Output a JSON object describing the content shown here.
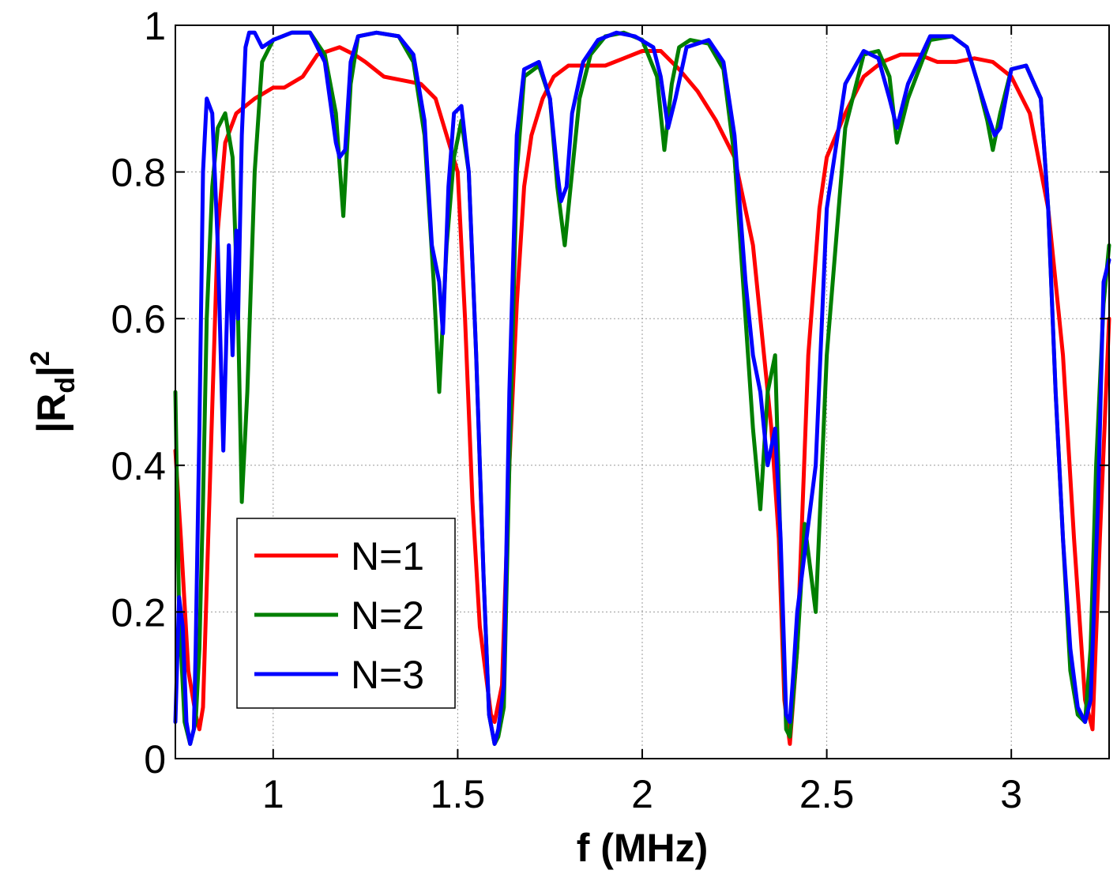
{
  "chart_data": {
    "type": "line",
    "title": "",
    "xlabel": "f (MHz)",
    "ylabel_main": "|R",
    "ylabel_sub": "d",
    "ylabel_tail": "|",
    "ylabel_sup": "2",
    "xlim": [
      0.735,
      3.265
    ],
    "ylim": [
      0,
      1
    ],
    "xticks": [
      1,
      1.5,
      2,
      2.5,
      3
    ],
    "xtick_labels": [
      "1",
      "1.5",
      "2",
      "2.5",
      "3"
    ],
    "yticks": [
      0,
      0.2,
      0.4,
      0.6,
      0.8,
      1
    ],
    "ytick_labels": [
      "0",
      "0.2",
      "0.4",
      "0.6",
      "0.8",
      "1"
    ],
    "grid": true,
    "legend_position": "lower-left",
    "series": [
      {
        "name": "N=1",
        "color": "#ff0000",
        "x": [
          0.735,
          0.75,
          0.77,
          0.79,
          0.8,
          0.81,
          0.83,
          0.85,
          0.87,
          0.9,
          0.95,
          1.0,
          1.03,
          1.08,
          1.12,
          1.18,
          1.22,
          1.25,
          1.3,
          1.35,
          1.4,
          1.44,
          1.47,
          1.5,
          1.52,
          1.54,
          1.56,
          1.58,
          1.59,
          1.6,
          1.62,
          1.64,
          1.66,
          1.68,
          1.7,
          1.73,
          1.76,
          1.8,
          1.85,
          1.9,
          1.95,
          2.0,
          2.05,
          2.1,
          2.15,
          2.2,
          2.25,
          2.3,
          2.33,
          2.35,
          2.37,
          2.385,
          2.4,
          2.42,
          2.45,
          2.48,
          2.5,
          2.55,
          2.6,
          2.65,
          2.7,
          2.75,
          2.8,
          2.85,
          2.9,
          2.95,
          3.0,
          3.05,
          3.1,
          3.14,
          3.17,
          3.2,
          3.22,
          3.24,
          3.265
        ],
        "values": [
          0.42,
          0.3,
          0.12,
          0.06,
          0.04,
          0.07,
          0.4,
          0.72,
          0.84,
          0.88,
          0.9,
          0.915,
          0.915,
          0.93,
          0.96,
          0.97,
          0.96,
          0.95,
          0.93,
          0.925,
          0.92,
          0.9,
          0.85,
          0.8,
          0.6,
          0.35,
          0.18,
          0.1,
          0.06,
          0.05,
          0.1,
          0.4,
          0.62,
          0.78,
          0.85,
          0.9,
          0.93,
          0.945,
          0.945,
          0.945,
          0.955,
          0.965,
          0.965,
          0.94,
          0.91,
          0.87,
          0.82,
          0.7,
          0.55,
          0.45,
          0.3,
          0.08,
          0.02,
          0.15,
          0.55,
          0.75,
          0.82,
          0.88,
          0.93,
          0.95,
          0.96,
          0.96,
          0.95,
          0.95,
          0.955,
          0.95,
          0.93,
          0.88,
          0.75,
          0.55,
          0.3,
          0.08,
          0.04,
          0.3,
          0.6
        ]
      },
      {
        "name": "N=2",
        "color": "#007f00",
        "x": [
          0.735,
          0.745,
          0.76,
          0.775,
          0.79,
          0.8,
          0.81,
          0.82,
          0.835,
          0.85,
          0.87,
          0.89,
          0.905,
          0.915,
          0.93,
          0.95,
          0.97,
          1.0,
          1.05,
          1.1,
          1.14,
          1.17,
          1.19,
          1.21,
          1.23,
          1.28,
          1.34,
          1.38,
          1.41,
          1.435,
          1.45,
          1.47,
          1.49,
          1.51,
          1.53,
          1.55,
          1.57,
          1.585,
          1.6,
          1.61,
          1.625,
          1.64,
          1.66,
          1.68,
          1.72,
          1.75,
          1.77,
          1.79,
          1.81,
          1.83,
          1.86,
          1.9,
          1.95,
          2.0,
          2.04,
          2.06,
          2.08,
          2.1,
          2.13,
          2.18,
          2.22,
          2.25,
          2.28,
          2.3,
          2.32,
          2.34,
          2.36,
          2.38,
          2.39,
          2.4,
          2.42,
          2.44,
          2.47,
          2.5,
          2.55,
          2.6,
          2.64,
          2.67,
          2.69,
          2.72,
          2.78,
          2.84,
          2.88,
          2.91,
          2.935,
          2.95,
          2.97,
          3.0,
          3.04,
          3.08,
          3.1,
          3.12,
          3.14,
          3.16,
          3.18,
          3.2,
          3.215,
          3.23,
          3.25,
          3.265
        ],
        "values": [
          0.5,
          0.2,
          0.05,
          0.02,
          0.05,
          0.15,
          0.35,
          0.6,
          0.78,
          0.86,
          0.88,
          0.82,
          0.6,
          0.35,
          0.5,
          0.8,
          0.95,
          0.98,
          0.99,
          0.99,
          0.96,
          0.88,
          0.74,
          0.92,
          0.985,
          0.99,
          0.985,
          0.95,
          0.85,
          0.65,
          0.5,
          0.7,
          0.82,
          0.87,
          0.8,
          0.55,
          0.25,
          0.06,
          0.02,
          0.03,
          0.07,
          0.4,
          0.8,
          0.93,
          0.945,
          0.9,
          0.78,
          0.7,
          0.8,
          0.9,
          0.96,
          0.985,
          0.99,
          0.98,
          0.93,
          0.83,
          0.92,
          0.97,
          0.98,
          0.975,
          0.94,
          0.82,
          0.6,
          0.45,
          0.34,
          0.5,
          0.55,
          0.2,
          0.04,
          0.03,
          0.15,
          0.32,
          0.2,
          0.55,
          0.86,
          0.96,
          0.965,
          0.93,
          0.84,
          0.9,
          0.98,
          0.985,
          0.97,
          0.92,
          0.87,
          0.83,
          0.88,
          0.94,
          0.945,
          0.9,
          0.75,
          0.5,
          0.3,
          0.12,
          0.06,
          0.05,
          0.15,
          0.4,
          0.62,
          0.7
        ]
      },
      {
        "name": "N=3",
        "color": "#0000ff",
        "x": [
          0.735,
          0.745,
          0.755,
          0.765,
          0.775,
          0.785,
          0.79,
          0.8,
          0.81,
          0.82,
          0.835,
          0.85,
          0.865,
          0.88,
          0.89,
          0.9,
          0.905,
          0.915,
          0.925,
          0.935,
          0.94,
          0.95,
          0.97,
          1.0,
          1.05,
          1.1,
          1.14,
          1.17,
          1.18,
          1.195,
          1.21,
          1.23,
          1.28,
          1.34,
          1.38,
          1.41,
          1.43,
          1.45,
          1.46,
          1.475,
          1.49,
          1.51,
          1.53,
          1.55,
          1.57,
          1.585,
          1.6,
          1.61,
          1.625,
          1.64,
          1.66,
          1.68,
          1.72,
          1.75,
          1.77,
          1.78,
          1.795,
          1.81,
          1.84,
          1.88,
          1.93,
          1.98,
          2.03,
          2.05,
          2.07,
          2.09,
          2.12,
          2.18,
          2.22,
          2.25,
          2.28,
          2.3,
          2.32,
          2.34,
          2.36,
          2.375,
          2.39,
          2.4,
          2.41,
          2.42,
          2.44,
          2.47,
          2.5,
          2.55,
          2.6,
          2.64,
          2.67,
          2.69,
          2.72,
          2.78,
          2.84,
          2.88,
          2.91,
          2.935,
          2.955,
          2.97,
          3.0,
          3.04,
          3.08,
          3.1,
          3.12,
          3.14,
          3.16,
          3.18,
          3.2,
          3.215,
          3.235,
          3.25,
          3.265
        ],
        "values": [
          0.05,
          0.22,
          0.18,
          0.05,
          0.02,
          0.04,
          0.15,
          0.45,
          0.8,
          0.9,
          0.88,
          0.7,
          0.42,
          0.7,
          0.55,
          0.72,
          0.6,
          0.85,
          0.97,
          0.99,
          0.99,
          0.99,
          0.97,
          0.98,
          0.99,
          0.99,
          0.95,
          0.84,
          0.82,
          0.83,
          0.95,
          0.985,
          0.99,
          0.985,
          0.96,
          0.87,
          0.7,
          0.65,
          0.58,
          0.78,
          0.88,
          0.89,
          0.8,
          0.55,
          0.25,
          0.06,
          0.02,
          0.04,
          0.1,
          0.5,
          0.85,
          0.94,
          0.95,
          0.9,
          0.8,
          0.76,
          0.78,
          0.88,
          0.95,
          0.98,
          0.99,
          0.985,
          0.97,
          0.93,
          0.86,
          0.9,
          0.97,
          0.98,
          0.95,
          0.85,
          0.65,
          0.55,
          0.5,
          0.4,
          0.45,
          0.3,
          0.06,
          0.05,
          0.12,
          0.2,
          0.28,
          0.4,
          0.75,
          0.92,
          0.965,
          0.955,
          0.9,
          0.86,
          0.92,
          0.985,
          0.985,
          0.97,
          0.92,
          0.88,
          0.85,
          0.86,
          0.94,
          0.945,
          0.9,
          0.75,
          0.5,
          0.3,
          0.15,
          0.07,
          0.05,
          0.08,
          0.35,
          0.65,
          0.68
        ]
      }
    ]
  }
}
